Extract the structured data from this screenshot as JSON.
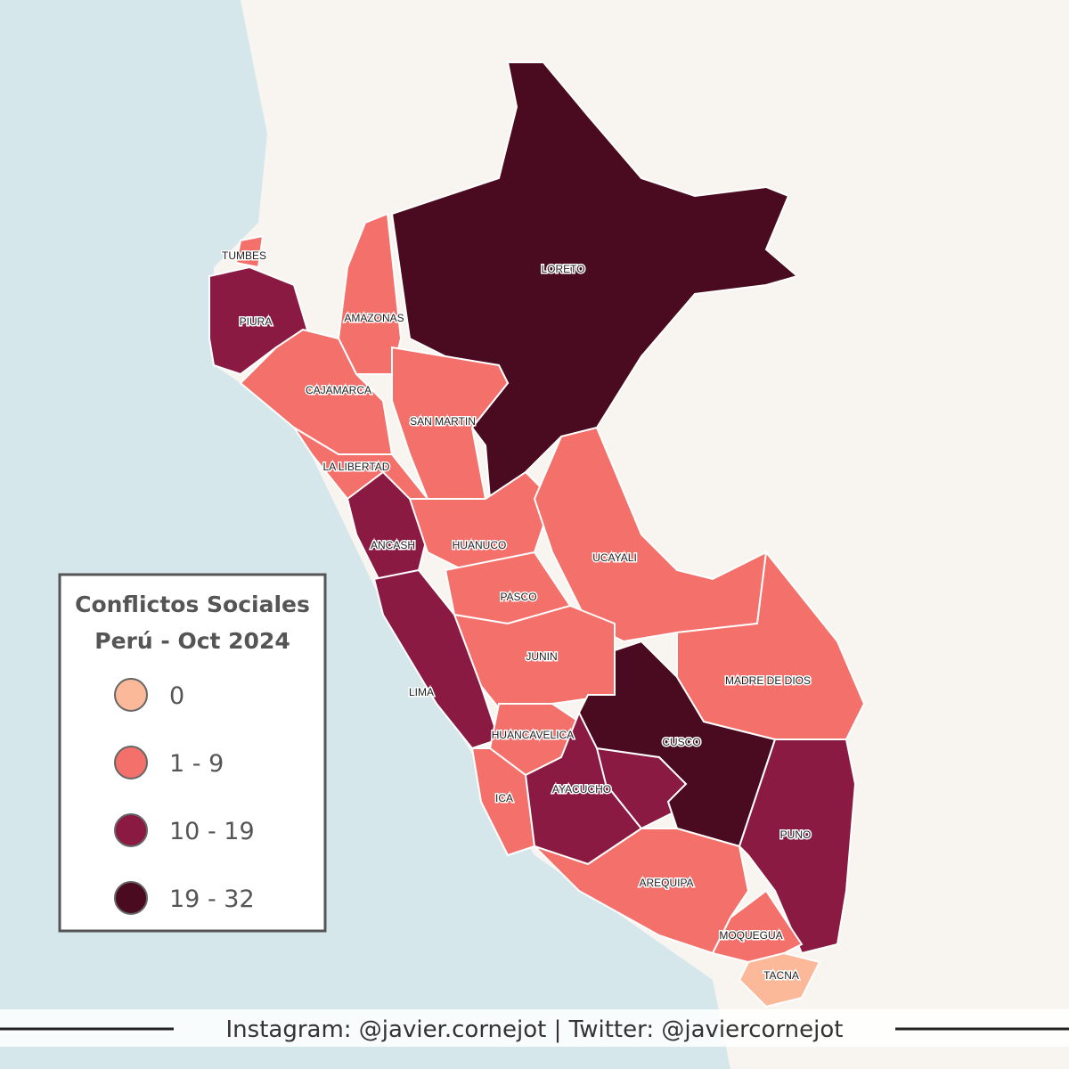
{
  "title": [
    "Conflictos Sociales",
    "Perú - Oct 2024"
  ],
  "legend": [
    {
      "label": "0",
      "color": "#fcb99a"
    },
    {
      "label": "1 - 9",
      "color": "#f4706a"
    },
    {
      "label": "10 - 19",
      "color": "#8b1a42"
    },
    {
      "label": "19 - 32",
      "color": "#4a0a1f"
    }
  ],
  "regions": [
    {
      "label": "LORETO",
      "color": "#4a0a1f"
    },
    {
      "label": "TUMBES",
      "color": "#f4706a"
    },
    {
      "label": "PIURA",
      "color": "#8b1a42"
    },
    {
      "label": "AMAZONAS",
      "color": "#f4706a"
    },
    {
      "label": "CAJAMARCA",
      "color": "#f4706a"
    },
    {
      "label": "SAN MARTIN",
      "color": "#f4706a"
    },
    {
      "label": "LA LIBERTAD",
      "color": "#f4706a"
    },
    {
      "label": "ANCASH",
      "color": "#8b1a42"
    },
    {
      "label": "HUANUCO",
      "color": "#f4706a"
    },
    {
      "label": "PASCO",
      "color": "#f4706a"
    },
    {
      "label": "UCAYALI",
      "color": "#f4706a"
    },
    {
      "label": "JUNIN",
      "color": "#f4706a"
    },
    {
      "label": "LIMA",
      "color": "#8b1a42"
    },
    {
      "label": "HUANCAVELICA",
      "color": "#f4706a"
    },
    {
      "label": "ICA",
      "color": "#f4706a"
    },
    {
      "label": "AYACUCHO",
      "color": "#8b1a42"
    },
    {
      "label": null,
      "color": "#8b1a42"
    },
    {
      "label": "CUSCO",
      "color": "#4a0a1f"
    },
    {
      "label": "MADRE DE DIOS",
      "color": "#f4706a"
    },
    {
      "label": "PUNO",
      "color": "#8b1a42"
    },
    {
      "label": "AREQUIPA",
      "color": "#f4706a"
    },
    {
      "label": "MOQUEGUA",
      "color": "#f4706a"
    },
    {
      "label": "TACNA",
      "color": "#fcb99a"
    }
  ],
  "footer": "Instagram: @javier.cornejot | Twitter: @javiercornejot"
}
